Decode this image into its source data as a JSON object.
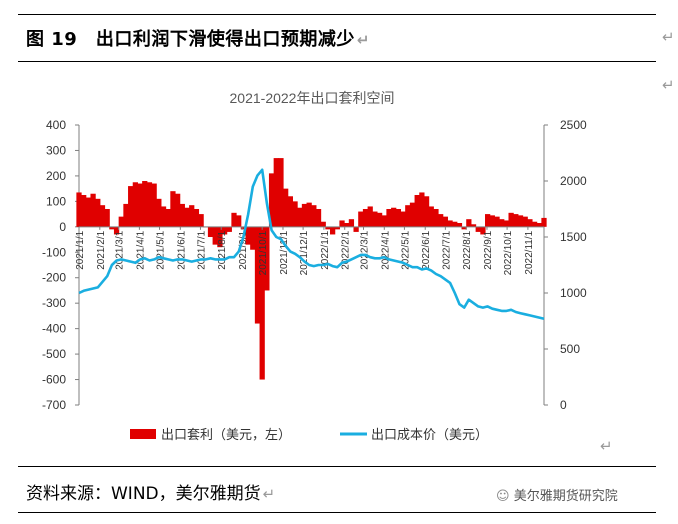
{
  "figure": {
    "title": "图 19　出口利润下滑使得出口预期减少",
    "return_mark": "↵",
    "source": "资料来源：WIND，美尔雅期货",
    "watermark": "美尔雅期货研究院"
  },
  "chart_data": {
    "type": "bar+line",
    "title": "2021-2022年出口套利空间",
    "x_tick_labels": [
      "2021/1/1",
      "2021/2/1",
      "2021/3/1",
      "2021/4/1",
      "2021/5/1",
      "2021/6/1",
      "2021/7/1",
      "2021/8/1",
      "2021/9/1",
      "2021/10/1",
      "2021/11/1",
      "2021/12/1",
      "2022/1/1",
      "2022/2/1",
      "2022/3/1",
      "2022/4/1",
      "2022/5/1",
      "2022/6/1",
      "2022/7/1",
      "2022/8/1",
      "2022/9/1",
      "2022/10/1",
      "2022/11/1"
    ],
    "y_left": {
      "min": -700,
      "max": 400,
      "ticks": [
        400,
        300,
        200,
        100,
        0,
        -100,
        -200,
        -300,
        -400,
        -500,
        -600,
        -700
      ]
    },
    "y_right": {
      "min": 0,
      "max": 2500,
      "ticks": [
        2500,
        2000,
        1500,
        1000,
        500,
        0
      ]
    },
    "series": [
      {
        "name": "出口套利（美元，左）",
        "type": "bar",
        "axis": "left",
        "color": "#e00000",
        "x": [
          "2021/1/1",
          "2021/1/8",
          "2021/1/15",
          "2021/1/22",
          "2021/1/29",
          "2021/2/5",
          "2021/2/12",
          "2021/2/19",
          "2021/2/26",
          "2021/3/5",
          "2021/3/12",
          "2021/3/19",
          "2021/3/26",
          "2021/4/2",
          "2021/4/9",
          "2021/4/16",
          "2021/4/23",
          "2021/4/30",
          "2021/5/7",
          "2021/5/14",
          "2021/5/21",
          "2021/5/28",
          "2021/6/4",
          "2021/6/11",
          "2021/6/18",
          "2021/6/25",
          "2021/7/2",
          "2021/7/9",
          "2021/7/16",
          "2021/7/23",
          "2021/7/30",
          "2021/8/6",
          "2021/8/13",
          "2021/8/20",
          "2021/8/27",
          "2021/9/3",
          "2021/9/10",
          "2021/9/17",
          "2021/9/24",
          "2021/10/1",
          "2021/10/8",
          "2021/10/15",
          "2021/10/22",
          "2021/10/29",
          "2021/11/5",
          "2021/11/12",
          "2021/11/19",
          "2021/11/26",
          "2021/12/3",
          "2021/12/10",
          "2021/12/17",
          "2021/12/24",
          "2021/12/31",
          "2022/1/7",
          "2022/1/14",
          "2022/1/21",
          "2022/1/28",
          "2022/2/4",
          "2022/2/11",
          "2022/2/18",
          "2022/2/25",
          "2022/3/4",
          "2022/3/11",
          "2022/3/18",
          "2022/3/25",
          "2022/4/1",
          "2022/4/8",
          "2022/4/15",
          "2022/4/22",
          "2022/4/29",
          "2022/5/6",
          "2022/5/13",
          "2022/5/20",
          "2022/5/27",
          "2022/6/3",
          "2022/6/10",
          "2022/6/17",
          "2022/6/24",
          "2022/7/1",
          "2022/7/8",
          "2022/7/15",
          "2022/7/22",
          "2022/7/29",
          "2022/8/5",
          "2022/8/12",
          "2022/8/19",
          "2022/8/26",
          "2022/9/2",
          "2022/9/9",
          "2022/9/16",
          "2022/9/23",
          "2022/9/30",
          "2022/10/7",
          "2022/10/14",
          "2022/10/21",
          "2022/10/28",
          "2022/11/4",
          "2022/11/11",
          "2022/11/18",
          "2022/11/25"
        ],
        "values": [
          135,
          125,
          115,
          130,
          110,
          85,
          70,
          -10,
          -30,
          40,
          90,
          160,
          175,
          170,
          180,
          175,
          170,
          110,
          80,
          70,
          140,
          130,
          90,
          75,
          85,
          70,
          50,
          0,
          -40,
          -70,
          -80,
          -30,
          -20,
          55,
          45,
          -10,
          -70,
          -90,
          -380,
          -600,
          -250,
          210,
          270,
          270,
          150,
          120,
          100,
          75,
          90,
          95,
          85,
          70,
          20,
          -10,
          -30,
          -10,
          25,
          15,
          30,
          -20,
          60,
          70,
          80,
          60,
          55,
          45,
          70,
          75,
          70,
          60,
          85,
          95,
          125,
          135,
          120,
          80,
          70,
          50,
          40,
          25,
          20,
          15,
          -10,
          30,
          10,
          -20,
          -30,
          50,
          45,
          40,
          30,
          25,
          55,
          50,
          45,
          40,
          30,
          20,
          15,
          35
        ]
      },
      {
        "name": "出口成本价（美元）",
        "type": "line",
        "axis": "right",
        "color": "#1aaee0",
        "x": [
          "2021/1/1",
          "2021/1/8",
          "2021/1/15",
          "2021/1/22",
          "2021/1/29",
          "2021/2/5",
          "2021/2/12",
          "2021/2/19",
          "2021/2/26",
          "2021/3/5",
          "2021/3/12",
          "2021/3/19",
          "2021/3/26",
          "2021/4/2",
          "2021/4/9",
          "2021/4/16",
          "2021/4/23",
          "2021/4/30",
          "2021/5/7",
          "2021/5/14",
          "2021/5/21",
          "2021/5/28",
          "2021/6/4",
          "2021/6/11",
          "2021/6/18",
          "2021/6/25",
          "2021/7/2",
          "2021/7/9",
          "2021/7/16",
          "2021/7/23",
          "2021/7/30",
          "2021/8/6",
          "2021/8/13",
          "2021/8/20",
          "2021/8/27",
          "2021/9/3",
          "2021/9/10",
          "2021/9/17",
          "2021/9/24",
          "2021/10/1",
          "2021/10/8",
          "2021/10/15",
          "2021/10/22",
          "2021/10/29",
          "2021/11/5",
          "2021/11/12",
          "2021/11/19",
          "2021/11/26",
          "2021/12/3",
          "2021/12/10",
          "2021/12/17",
          "2021/12/24",
          "2021/12/31",
          "2022/1/7",
          "2022/1/14",
          "2022/1/21",
          "2022/1/28",
          "2022/2/4",
          "2022/2/11",
          "2022/2/18",
          "2022/2/25",
          "2022/3/4",
          "2022/3/11",
          "2022/3/18",
          "2022/3/25",
          "2022/4/1",
          "2022/4/8",
          "2022/4/15",
          "2022/4/22",
          "2022/4/29",
          "2022/5/6",
          "2022/5/13",
          "2022/5/20",
          "2022/5/27",
          "2022/6/3",
          "2022/6/10",
          "2022/6/17",
          "2022/6/24",
          "2022/7/1",
          "2022/7/8",
          "2022/7/15",
          "2022/7/22",
          "2022/7/29",
          "2022/8/5",
          "2022/8/12",
          "2022/8/19",
          "2022/8/26",
          "2022/9/2",
          "2022/9/9",
          "2022/9/16",
          "2022/9/23",
          "2022/9/30",
          "2022/10/7",
          "2022/10/14",
          "2022/10/21",
          "2022/10/28",
          "2022/11/4",
          "2022/11/11",
          "2022/11/18",
          "2022/11/25"
        ],
        "values": [
          1000,
          1020,
          1030,
          1040,
          1050,
          1100,
          1150,
          1250,
          1290,
          1300,
          1290,
          1280,
          1270,
          1300,
          1310,
          1290,
          1300,
          1320,
          1310,
          1300,
          1290,
          1300,
          1300,
          1290,
          1280,
          1290,
          1300,
          1300,
          1310,
          1300,
          1300,
          1300,
          1320,
          1320,
          1370,
          1500,
          1700,
          1950,
          2050,
          2100,
          1800,
          1560,
          1500,
          1480,
          1420,
          1370,
          1350,
          1320,
          1280,
          1250,
          1240,
          1250,
          1250,
          1260,
          1240,
          1230,
          1270,
          1280,
          1300,
          1320,
          1340,
          1340,
          1320,
          1310,
          1310,
          1320,
          1300,
          1290,
          1280,
          1270,
          1250,
          1230,
          1230,
          1210,
          1220,
          1200,
          1170,
          1150,
          1120,
          1090,
          1000,
          900,
          870,
          940,
          910,
          880,
          870,
          880,
          860,
          850,
          840,
          840,
          850,
          830,
          820,
          810,
          800,
          790,
          780,
          770
        ]
      }
    ]
  }
}
